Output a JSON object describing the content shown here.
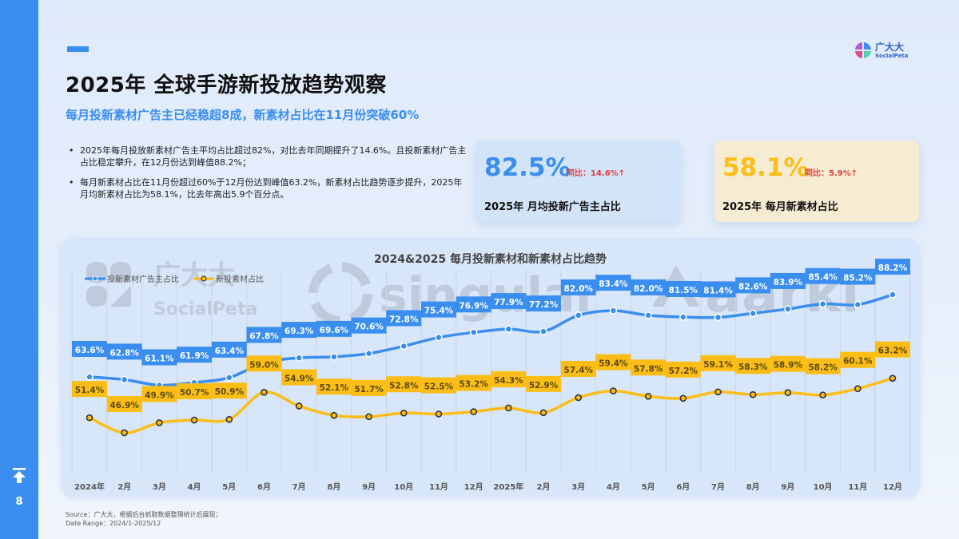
{
  "sidebar": {
    "page_number": "8",
    "icon": "scroll-to-top-icon"
  },
  "header": {
    "title": "2025年 全球手游新投放趋势观察",
    "subtitle": "每月投新素材广告主已经稳超8成，新素材占比在11月份突破60%",
    "logo": {
      "cn": "广大大",
      "en": "SocialPeta"
    }
  },
  "bullets": [
    "2025年每月投放新素材广告主平均占比超过82%，对比去年同期提升了14.6%。且投新素材广告主占比稳定攀升，在12月份达到峰值88.2%；",
    "每月新素材占比在11月份超过60%于12月份达到峰值63.2%，新素材占比趋势逐步提升，2025年月均新素材占比为58.1%，比去年高出5.9个百分点。"
  ],
  "kpis": [
    {
      "value": "82.5%",
      "yoy": "同比：14.6%↑",
      "label": "2025年 月均投新广告主占比",
      "color": "#3a8ef0"
    },
    {
      "value": "58.1%",
      "yoy": "同比：5.9%↑",
      "label": "2025年 每月新素材占比",
      "color": "#fbbd16"
    }
  ],
  "watermarks": [
    "广大大 SocialPeta",
    "singular",
    "aarki"
  ],
  "chart_data": {
    "type": "line",
    "title": "2024&2025 每月投新素材和新素材占比趋势",
    "xlabel": "",
    "ylabel": "",
    "grid": true,
    "legend_position": "top-left",
    "categories": [
      "2024年",
      "2月",
      "3月",
      "4月",
      "5月",
      "6月",
      "7月",
      "8月",
      "9月",
      "10月",
      "11月",
      "12月",
      "2025年",
      "2月",
      "3月",
      "4月",
      "5月",
      "6月",
      "7月",
      "8月",
      "9月",
      "10月",
      "11月",
      "12月"
    ],
    "series": [
      {
        "name": "投新素材广告主占比",
        "color": "#3a8ef0",
        "values": [
          63.6,
          62.8,
          61.1,
          61.9,
          63.4,
          67.8,
          69.3,
          69.6,
          70.6,
          72.8,
          75.4,
          76.9,
          77.9,
          77.2,
          82.0,
          83.4,
          82.0,
          81.5,
          81.4,
          82.6,
          83.9,
          85.4,
          85.2,
          88.2
        ]
      },
      {
        "name": "新投素材占比",
        "color": "#fbbd16",
        "values": [
          51.4,
          46.9,
          49.9,
          50.7,
          50.9,
          59.0,
          54.9,
          52.1,
          51.7,
          52.8,
          52.5,
          53.2,
          54.3,
          52.9,
          57.4,
          59.4,
          57.8,
          57.2,
          59.1,
          58.3,
          58.9,
          58.2,
          60.1,
          63.2
        ]
      }
    ]
  },
  "footer": {
    "source": "Source：广大大，根据后台抓取数据整理统计后展现；",
    "date_range": "Date Range：2024/1-2025/12"
  }
}
